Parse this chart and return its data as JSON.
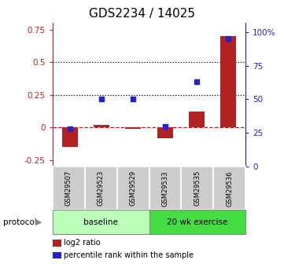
{
  "title": "GDS2234 / 14025",
  "samples": [
    "GSM29507",
    "GSM29523",
    "GSM29529",
    "GSM29533",
    "GSM29535",
    "GSM29536"
  ],
  "log2_ratio": [
    -0.15,
    0.02,
    -0.01,
    -0.08,
    0.12,
    0.7
  ],
  "percentile_rank": [
    28,
    50,
    50,
    30,
    63,
    95
  ],
  "bar_color": "#B22222",
  "dot_color": "#2222CC",
  "ylim_left": [
    -0.3,
    0.8
  ],
  "ylim_right": [
    0,
    106.67
  ],
  "yticks_left": [
    -0.25,
    0,
    0.25,
    0.5,
    0.75
  ],
  "ytick_labels_left": [
    "-0.25",
    "0",
    "0.25",
    "0.5",
    "0.75"
  ],
  "yticks_right": [
    0,
    25,
    50,
    75,
    100
  ],
  "ytick_labels_right": [
    "0",
    "25",
    "50",
    "75",
    "100%"
  ],
  "hlines": [
    0.25,
    0.5
  ],
  "dashed_hline": 0.0,
  "n_baseline": 3,
  "n_exercise": 3,
  "baseline_label": "baseline",
  "exercise_label": "20 wk exercise",
  "protocol_label": "protocol",
  "legend_red": "log2 ratio",
  "legend_blue": "percentile rank within the sample",
  "baseline_color": "#bbffbb",
  "exercise_color": "#44dd44",
  "sample_box_color": "#cccccc",
  "title_fontsize": 11,
  "tick_fontsize": 7.5,
  "bar_width": 0.5,
  "dot_size": 20
}
